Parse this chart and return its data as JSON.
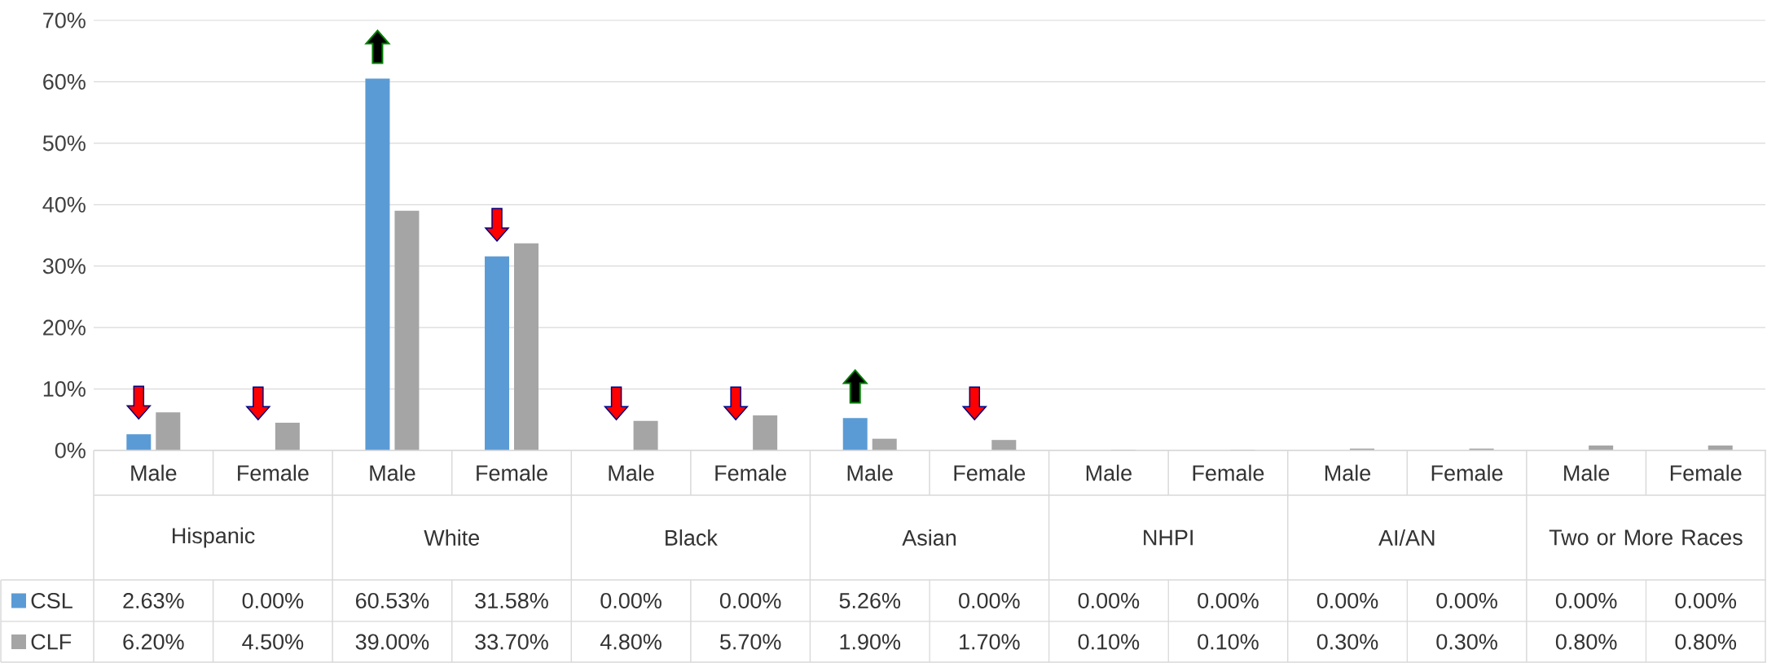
{
  "chart_data": {
    "type": "bar",
    "categories": [
      "Male",
      "Female",
      "Male",
      "Female",
      "Male",
      "Female",
      "Male",
      "Female",
      "Male",
      "Female",
      "Male",
      "Female",
      "Male",
      "Female"
    ],
    "series": [
      {
        "name": "CSL",
        "color": "#5b9bd5",
        "values": [
          2.63,
          0.0,
          60.53,
          31.58,
          0.0,
          0.0,
          5.26,
          0.0,
          0.0,
          0.0,
          0.0,
          0.0,
          0.0,
          0.0
        ],
        "value_labels": [
          "2.63%",
          "0.00%",
          "60.53%",
          "31.58%",
          "0.00%",
          "0.00%",
          "5.26%",
          "0.00%",
          "0.00%",
          "0.00%",
          "0.00%",
          "0.00%",
          "0.00%",
          "0.00%"
        ]
      },
      {
        "name": "CLF",
        "color": "#a5a5a5",
        "values": [
          6.2,
          4.5,
          39.0,
          33.7,
          4.8,
          5.7,
          1.9,
          1.7,
          0.1,
          0.1,
          0.3,
          0.3,
          0.8,
          0.8
        ],
        "value_labels": [
          "6.20%",
          "4.50%",
          "39.00%",
          "33.70%",
          "4.80%",
          "5.70%",
          "1.90%",
          "1.70%",
          "0.10%",
          "0.10%",
          "0.30%",
          "0.30%",
          "0.80%",
          "0.80%"
        ]
      }
    ],
    "ylim": [
      0,
      70
    ],
    "yticks": [
      {
        "value": 0,
        "label": "0%"
      },
      {
        "value": 10,
        "label": "10%"
      },
      {
        "value": 20,
        "label": "20%"
      },
      {
        "value": 30,
        "label": "30%"
      },
      {
        "value": 40,
        "label": "40%"
      },
      {
        "value": 50,
        "label": "50%"
      },
      {
        "value": 60,
        "label": "60%"
      },
      {
        "value": 70,
        "label": "70%"
      }
    ],
    "grid": "y",
    "legend": "bottom",
    "annotations": [
      "Hispanic",
      "White",
      "Black",
      "Asian",
      "NHPI",
      "AI/AN",
      "Two or More Races"
    ]
  }
}
